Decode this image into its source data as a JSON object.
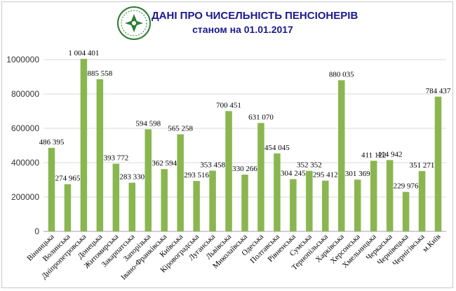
{
  "colors": {
    "bar": "#8ab64f",
    "title": "#1a1a8c",
    "grid": "#d9d9d9",
    "logo_green": "#2e7d32"
  },
  "logo": {
    "icon": "pension-fund-emblem-icon"
  },
  "chart_data": {
    "type": "bar",
    "title": "ДАНІ ПРО ЧИСЕЛЬНІСТЬ ПЕНСІОНЕРІВ",
    "subtitle": "станом на 01.01.2017",
    "xlabel": "",
    "ylabel": "",
    "ylim": [
      0,
      1000000
    ],
    "yticks": [
      0,
      200000,
      400000,
      600000,
      800000,
      1000000
    ],
    "ytick_labels": [
      "0",
      "200000",
      "400000",
      "600000",
      "800000",
      "1000000"
    ],
    "grid": "horizontal",
    "legend": "none",
    "categories": [
      "Вінницька",
      "Волинська",
      "Дніпропетровська",
      "Донецька",
      "Житомирська",
      "Закарпатська",
      "Запорізька",
      "Івано-Франківська",
      "Київська",
      "Кіровоградська",
      "Луганська",
      "Львівська",
      "Миколаївська",
      "Одеська",
      "Полтавська",
      "Рівненська",
      "Сумська",
      "Тернопільська",
      "Харківська",
      "Херсонська",
      "Хмельницька",
      "Черкаська",
      "Чернівецька",
      "Чернігівська",
      "м.Київ"
    ],
    "values": [
      486395,
      274965,
      1004401,
      885558,
      393772,
      283330,
      594598,
      362594,
      565258,
      293516,
      353458,
      700451,
      330266,
      631070,
      454045,
      304245,
      352352,
      295412,
      880035,
      301369,
      411122,
      414942,
      229976,
      351271,
      784437
    ],
    "value_labels": [
      "486 395",
      "274 965",
      "1 004 401",
      "885 558",
      "393 772",
      "283 330",
      "594 598",
      "362 594",
      "565 258",
      "293 516",
      "353 458",
      "700 451",
      "330 266",
      "631 070",
      "454 045",
      "304 245",
      "352 352",
      "295 412",
      "880 035",
      "301 369",
      "411 122",
      "414 942",
      "229 976",
      "351 271",
      "784 437"
    ]
  }
}
